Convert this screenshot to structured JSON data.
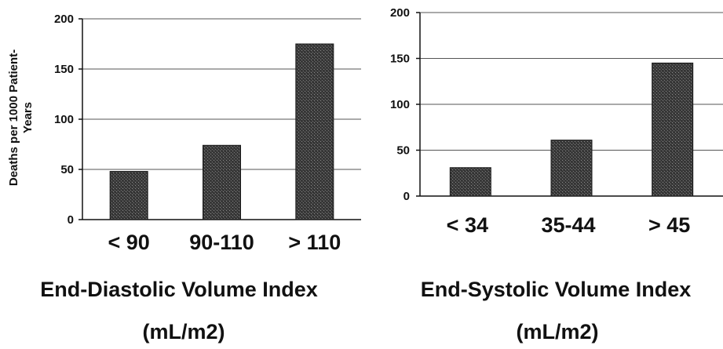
{
  "chart_data": [
    {
      "type": "bar",
      "categories": [
        "< 90",
        "90-110",
        "> 110"
      ],
      "values": [
        48,
        74,
        175
      ],
      "xlabel": "End-Diastolic Volume Index",
      "xlabel_unit": "(mL/m2)",
      "ylabel": "Deaths per 1000 Patient-Years",
      "ylabel_lines": [
        "Deaths per 1000 Patient-",
        "Years"
      ],
      "ylim": [
        0,
        200
      ],
      "yticks": [
        0,
        50,
        100,
        150,
        200
      ],
      "grid": true,
      "bar_color": "#3a3a3a"
    },
    {
      "type": "bar",
      "categories": [
        "< 34",
        "35-44",
        "> 45"
      ],
      "values": [
        31,
        61,
        145
      ],
      "xlabel": "End-Systolic Volume Index",
      "xlabel_unit": "(mL/m2)",
      "ylim": [
        0,
        200
      ],
      "yticks": [
        0,
        50,
        100,
        150,
        200
      ],
      "grid": true,
      "bar_color": "#3a3a3a"
    }
  ]
}
